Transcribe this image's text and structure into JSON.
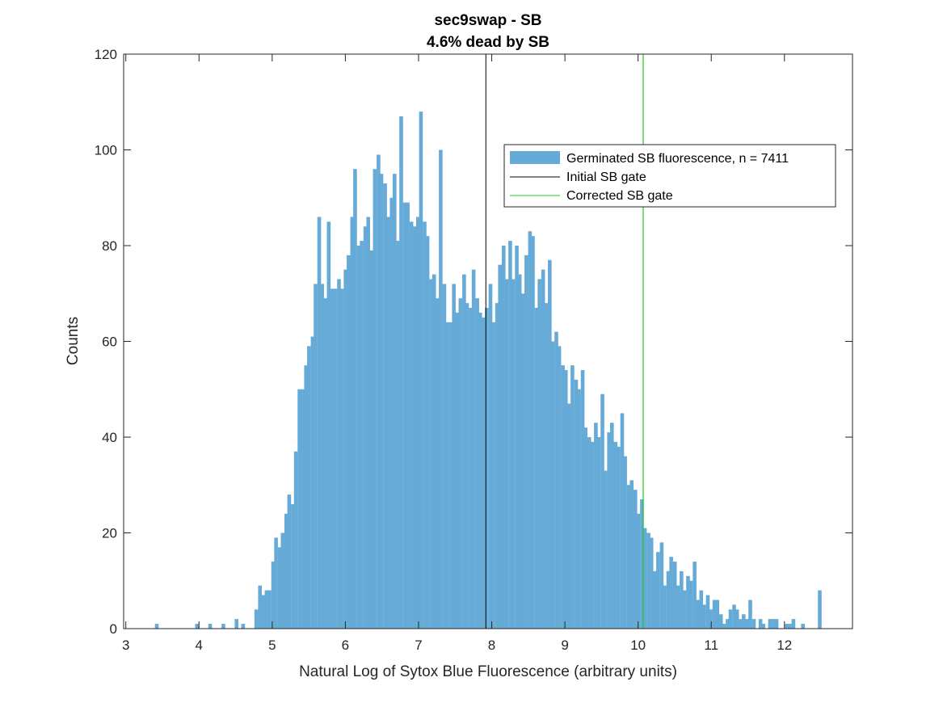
{
  "chart_data": {
    "type": "bar",
    "title": "sec9swap - SB",
    "subtitle": "4.6% dead by SB",
    "xlabel": "Natural Log of Sytox Blue Fluorescence (arbitrary units)",
    "ylabel": "Counts",
    "xlim": [
      2.97,
      12.93
    ],
    "ylim": [
      0,
      120
    ],
    "xticks": [
      3,
      4,
      5,
      6,
      7,
      8,
      9,
      10,
      11,
      12
    ],
    "yticks": [
      0,
      20,
      40,
      60,
      80,
      100,
      120
    ],
    "grid": false,
    "legend_position": "top-right (inside)",
    "colors": {
      "bars": "#66aad7",
      "initial_gate": "#000000",
      "corrected_gate": "#22cc22"
    },
    "series": [
      {
        "name": "Germinated SB fluorescence, n = 7411",
        "bin_width": 0.0452,
        "bins": [
          [
            3.42,
            1
          ],
          [
            3.97,
            1
          ],
          [
            4.15,
            1
          ],
          [
            4.33,
            1
          ],
          [
            4.51,
            2
          ],
          [
            4.6,
            1
          ],
          [
            4.78,
            4
          ],
          [
            4.83,
            9
          ],
          [
            4.87,
            7
          ],
          [
            4.92,
            8
          ],
          [
            4.96,
            8
          ],
          [
            5.01,
            14
          ],
          [
            5.05,
            19
          ],
          [
            5.1,
            17
          ],
          [
            5.14,
            20
          ],
          [
            5.19,
            24
          ],
          [
            5.23,
            28
          ],
          [
            5.28,
            26
          ],
          [
            5.32,
            37
          ],
          [
            5.37,
            50
          ],
          [
            5.41,
            50
          ],
          [
            5.46,
            55
          ],
          [
            5.5,
            59
          ],
          [
            5.55,
            61
          ],
          [
            5.59,
            72
          ],
          [
            5.64,
            86
          ],
          [
            5.68,
            72
          ],
          [
            5.73,
            69
          ],
          [
            5.77,
            85
          ],
          [
            5.82,
            71
          ],
          [
            5.86,
            71
          ],
          [
            5.91,
            73
          ],
          [
            5.95,
            71
          ],
          [
            6.0,
            75
          ],
          [
            6.04,
            78
          ],
          [
            6.09,
            86
          ],
          [
            6.13,
            96
          ],
          [
            6.18,
            80
          ],
          [
            6.22,
            81
          ],
          [
            6.27,
            84
          ],
          [
            6.31,
            86
          ],
          [
            6.36,
            79
          ],
          [
            6.4,
            96
          ],
          [
            6.45,
            99
          ],
          [
            6.49,
            95
          ],
          [
            6.54,
            93
          ],
          [
            6.58,
            86
          ],
          [
            6.63,
            90
          ],
          [
            6.67,
            95
          ],
          [
            6.72,
            81
          ],
          [
            6.76,
            107
          ],
          [
            6.81,
            89
          ],
          [
            6.85,
            89
          ],
          [
            6.9,
            85
          ],
          [
            6.94,
            84
          ],
          [
            6.99,
            86
          ],
          [
            7.03,
            108
          ],
          [
            7.08,
            85
          ],
          [
            7.12,
            82
          ],
          [
            7.17,
            73
          ],
          [
            7.21,
            74
          ],
          [
            7.26,
            69
          ],
          [
            7.3,
            100
          ],
          [
            7.35,
            72
          ],
          [
            7.39,
            64
          ],
          [
            7.44,
            64
          ],
          [
            7.48,
            72
          ],
          [
            7.53,
            66
          ],
          [
            7.57,
            69
          ],
          [
            7.62,
            74
          ],
          [
            7.66,
            68
          ],
          [
            7.71,
            67
          ],
          [
            7.75,
            75
          ],
          [
            7.8,
            69
          ],
          [
            7.84,
            66
          ],
          [
            7.89,
            65
          ],
          [
            7.93,
            67
          ],
          [
            7.98,
            72
          ],
          [
            8.02,
            64
          ],
          [
            8.07,
            68
          ],
          [
            8.11,
            76
          ],
          [
            8.16,
            80
          ],
          [
            8.2,
            73
          ],
          [
            8.25,
            81
          ],
          [
            8.29,
            73
          ],
          [
            8.34,
            80
          ],
          [
            8.38,
            74
          ],
          [
            8.43,
            70
          ],
          [
            8.47,
            78
          ],
          [
            8.52,
            83
          ],
          [
            8.56,
            82
          ],
          [
            8.61,
            67
          ],
          [
            8.65,
            73
          ],
          [
            8.7,
            75
          ],
          [
            8.74,
            68
          ],
          [
            8.79,
            77
          ],
          [
            8.83,
            60
          ],
          [
            8.88,
            62
          ],
          [
            8.92,
            59
          ],
          [
            8.97,
            55
          ],
          [
            9.01,
            54
          ],
          [
            9.06,
            47
          ],
          [
            9.1,
            55
          ],
          [
            9.15,
            52
          ],
          [
            9.19,
            50
          ],
          [
            9.24,
            54
          ],
          [
            9.28,
            42
          ],
          [
            9.33,
            40
          ],
          [
            9.37,
            39
          ],
          [
            9.42,
            43
          ],
          [
            9.46,
            40
          ],
          [
            9.51,
            49
          ],
          [
            9.55,
            33
          ],
          [
            9.6,
            41
          ],
          [
            9.64,
            43
          ],
          [
            9.69,
            39
          ],
          [
            9.73,
            38
          ],
          [
            9.78,
            45
          ],
          [
            9.82,
            36
          ],
          [
            9.87,
            30
          ],
          [
            9.91,
            31
          ],
          [
            9.96,
            29
          ],
          [
            10.0,
            24
          ],
          [
            10.05,
            27
          ],
          [
            10.09,
            21
          ],
          [
            10.14,
            20
          ],
          [
            10.18,
            19
          ],
          [
            10.23,
            12
          ],
          [
            10.27,
            16
          ],
          [
            10.32,
            18
          ],
          [
            10.36,
            9
          ],
          [
            10.41,
            12
          ],
          [
            10.45,
            15
          ],
          [
            10.5,
            14
          ],
          [
            10.54,
            9
          ],
          [
            10.59,
            12
          ],
          [
            10.63,
            8
          ],
          [
            10.68,
            11
          ],
          [
            10.72,
            10
          ],
          [
            10.77,
            14
          ],
          [
            10.81,
            6
          ],
          [
            10.86,
            8
          ],
          [
            10.9,
            5
          ],
          [
            10.95,
            7
          ],
          [
            10.99,
            4
          ],
          [
            11.04,
            6
          ],
          [
            11.08,
            6
          ],
          [
            11.13,
            3
          ],
          [
            11.17,
            1
          ],
          [
            11.22,
            2
          ],
          [
            11.26,
            4
          ],
          [
            11.31,
            5
          ],
          [
            11.35,
            4
          ],
          [
            11.4,
            2
          ],
          [
            11.44,
            3
          ],
          [
            11.49,
            2
          ],
          [
            11.53,
            6
          ],
          [
            11.58,
            2
          ],
          [
            11.67,
            2
          ],
          [
            11.71,
            1
          ],
          [
            11.8,
            2
          ],
          [
            11.85,
            2
          ],
          [
            11.89,
            2
          ],
          [
            12.03,
            1
          ],
          [
            12.07,
            1
          ],
          [
            12.12,
            2
          ],
          [
            12.25,
            1
          ],
          [
            12.48,
            8
          ]
        ]
      },
      {
        "name": "Initial SB gate",
        "x": 7.92
      },
      {
        "name": "Corrected SB gate",
        "x": 10.07
      }
    ]
  }
}
